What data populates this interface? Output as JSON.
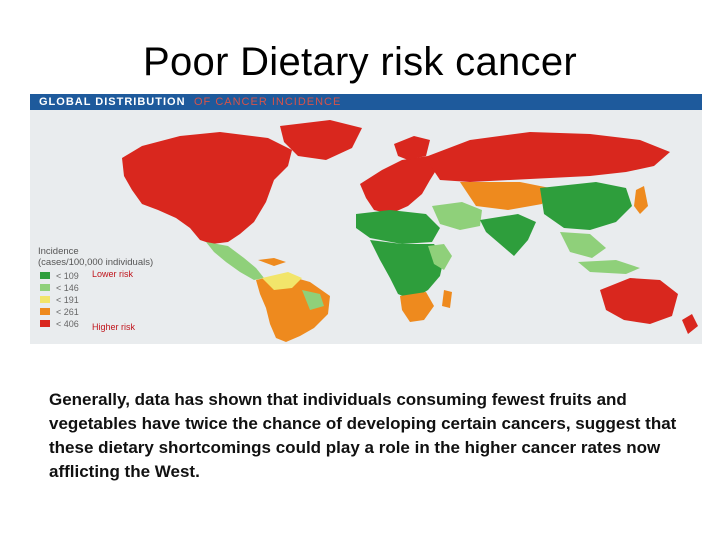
{
  "slide": {
    "title": "Poor Dietary risk cancer",
    "body": "Generally, data has shown that individuals consuming fewest fruits and vegetables have twice the chance of developing certain cancers, suggest that these dietary shortcomings could play a role in the higher cancer rates now afflicting the West."
  },
  "map": {
    "header_main": "GLOBAL DISTRIBUTION",
    "header_sub": "OF CANCER INCIDENCE",
    "legend_title_line1": "Incidence",
    "legend_title_line2": "(cases/100,000 individuals)",
    "legend": [
      {
        "label": "< 109",
        "color": "#2e9e3c"
      },
      {
        "label": "< 146",
        "color": "#8fd07a"
      },
      {
        "label": "< 191",
        "color": "#f2e56a"
      },
      {
        "label": "< 261",
        "color": "#ee8a1e"
      },
      {
        "label": "< 406",
        "color": "#d9271e"
      }
    ],
    "lower_risk_label": "Lower risk",
    "higher_risk_label": "Higher risk",
    "colors": {
      "header": "#1e5a9c",
      "ocean": "#e9ecee",
      "risk_note": "#c0141b"
    }
  }
}
